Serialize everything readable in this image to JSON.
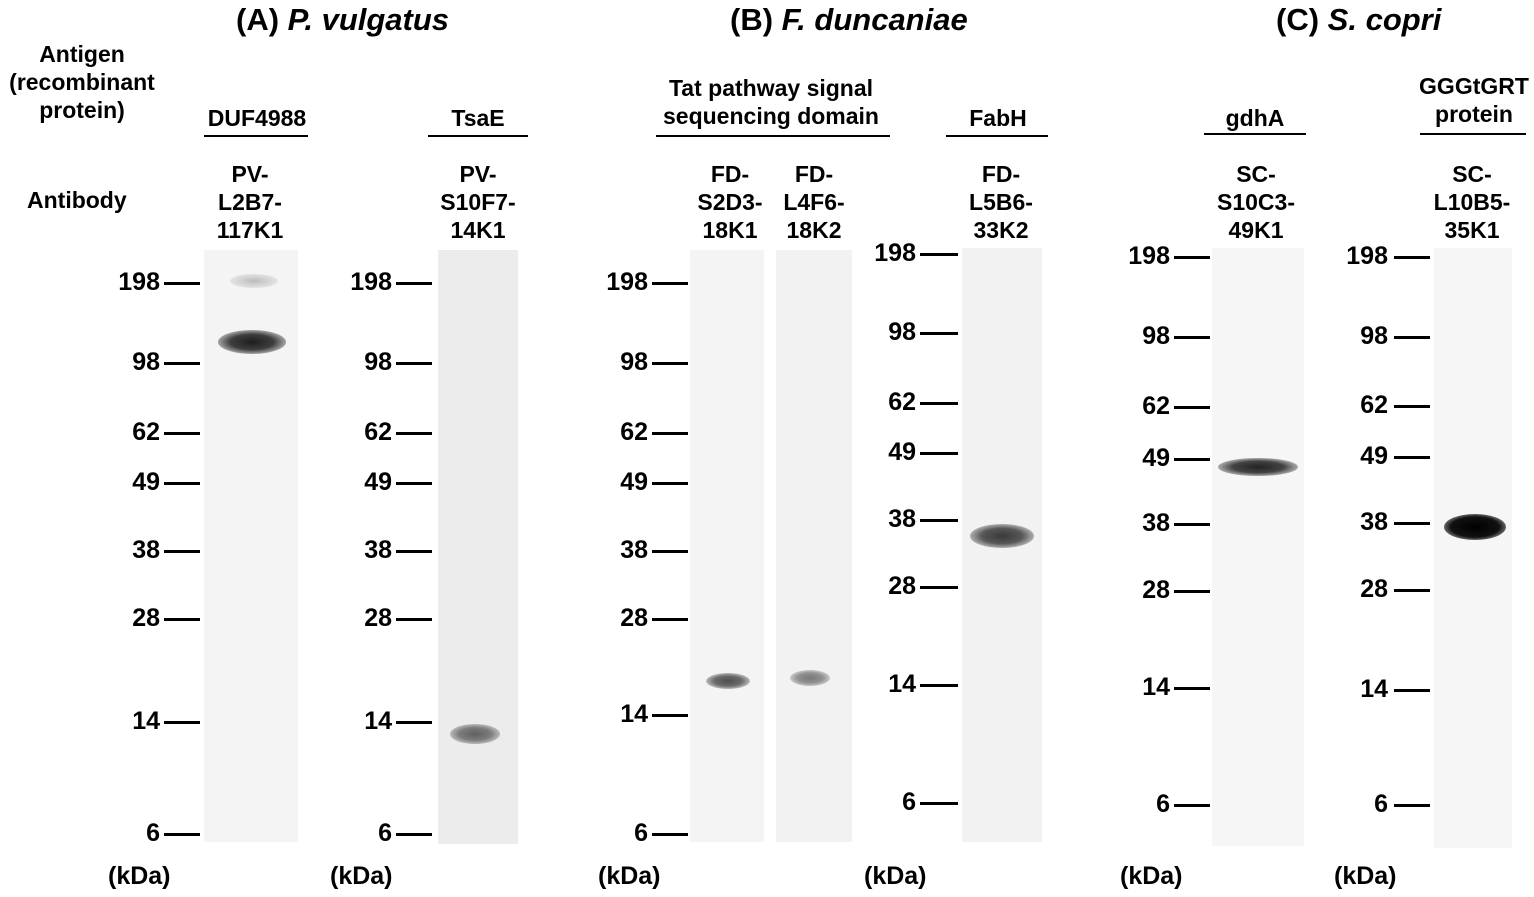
{
  "row_labels": {
    "antigen": "Antigen\n(recombinant\nprotein)",
    "antibody": "Antibody"
  },
  "unit_label": "(kDa)",
  "marker_values": [
    "198",
    "98",
    "62",
    "49",
    "38",
    "28",
    "14",
    "6"
  ],
  "panels": [
    {
      "letter": "(A)",
      "species": "P. vulgatus"
    },
    {
      "letter": "(B)",
      "species": "F. duncaniae"
    },
    {
      "letter": "(C)",
      "species": "S. copri"
    }
  ],
  "antigens": [
    {
      "text": "DUF4988"
    },
    {
      "text": "TsaE"
    },
    {
      "text": "Tat pathway signal\nsequencing domain"
    },
    {
      "text": "FabH"
    },
    {
      "text": "gdhA"
    },
    {
      "text": "GGGtGRT\nprotein"
    }
  ],
  "lanes": [
    {
      "antibody": "PV-\nL2B7-\n117K1",
      "band_intensity": 0.9
    },
    {
      "antibody": "PV-\nS10F7-\n14K1",
      "band_intensity": 0.7
    },
    {
      "antibody": "FD-\nS2D3-\n18K1",
      "band_intensity": 0.75
    },
    {
      "antibody": "FD-\nL4F6-\n18K2",
      "band_intensity": 0.6
    },
    {
      "antibody": "FD-\nL5B6-\n33K2",
      "band_intensity": 0.8
    },
    {
      "antibody": "SC-\nS10C3-\n49K1",
      "band_intensity": 0.85
    },
    {
      "antibody": "SC-\nL10B5-\n35K1",
      "band_intensity": 1.0
    }
  ]
}
